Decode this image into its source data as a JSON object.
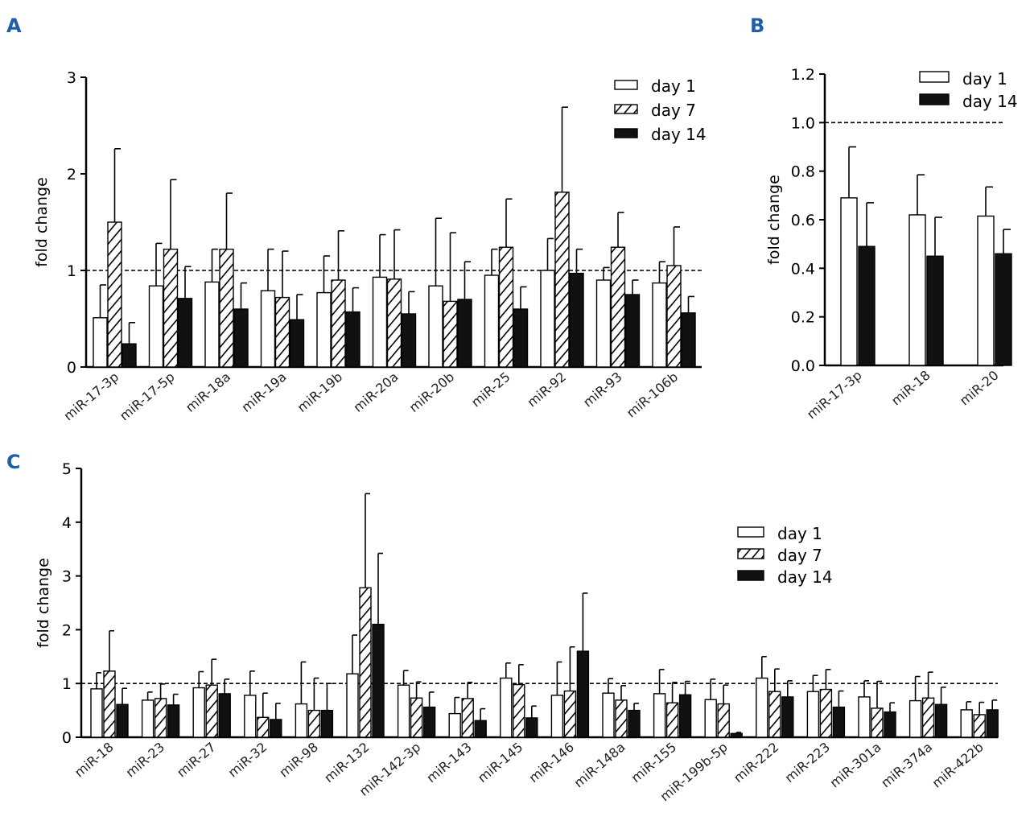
{
  "panel_letters": {
    "a": "A",
    "b": "B",
    "c": "C"
  },
  "colors": {
    "day1": "#ffffff",
    "day7_hatch": "#000000",
    "day14": "#111111",
    "axis": "#000000",
    "panel_letter": "#1f5fa8"
  },
  "chart_data": [
    {
      "id": "A",
      "type": "bar",
      "ylabel": "fold change",
      "xlabel": "",
      "ylim": [
        0,
        3
      ],
      "yticks": [
        "0",
        "1",
        "2",
        "3"
      ],
      "reference_line": 1,
      "legend": [
        "day 1",
        "day 7",
        "day 14"
      ],
      "categories": [
        "miR-17-3p",
        "miR-17-5p",
        "miR-18a",
        "miR-19a",
        "miR-19b",
        "miR-20a",
        "miR-20b",
        "miR-25",
        "miR-92",
        "miR-93",
        "miR-106b"
      ],
      "series": [
        {
          "name": "day 1",
          "style": "open",
          "values": [
            0.51,
            0.84,
            0.88,
            0.79,
            0.77,
            0.93,
            0.84,
            0.95,
            1.0,
            0.9,
            0.87
          ],
          "errors": [
            0.34,
            0.44,
            0.34,
            0.43,
            0.38,
            0.44,
            0.7,
            0.27,
            0.33,
            0.13,
            0.22
          ]
        },
        {
          "name": "day 7",
          "style": "hatched",
          "values": [
            1.5,
            1.22,
            1.22,
            0.72,
            0.9,
            0.91,
            0.68,
            1.24,
            1.81,
            1.24,
            1.05
          ],
          "errors": [
            0.76,
            0.72,
            0.58,
            0.48,
            0.51,
            0.51,
            0.71,
            0.5,
            0.88,
            0.36,
            0.4
          ]
        },
        {
          "name": "day 14",
          "style": "solid",
          "values": [
            0.24,
            0.71,
            0.6,
            0.49,
            0.57,
            0.55,
            0.7,
            0.6,
            0.97,
            0.75,
            0.56
          ],
          "errors": [
            0.22,
            0.33,
            0.27,
            0.26,
            0.25,
            0.23,
            0.39,
            0.23,
            0.25,
            0.15,
            0.17
          ]
        }
      ]
    },
    {
      "id": "B",
      "type": "bar",
      "ylabel": "fold change",
      "xlabel": "",
      "ylim": [
        0,
        1.2
      ],
      "yticks": [
        "0.0",
        "0.2",
        "0.4",
        "0.6",
        "0.8",
        "1.0",
        "1.2"
      ],
      "reference_line": 1.0,
      "legend": [
        "day 1",
        "day 14"
      ],
      "categories": [
        "miR-17-3p",
        "miR-18",
        "miR-20"
      ],
      "series": [
        {
          "name": "day 1",
          "style": "open",
          "values": [
            0.69,
            0.62,
            0.615
          ],
          "errors": [
            0.21,
            0.165,
            0.12
          ]
        },
        {
          "name": "day 14",
          "style": "solid",
          "values": [
            0.49,
            0.45,
            0.46
          ],
          "errors": [
            0.18,
            0.16,
            0.1
          ]
        }
      ]
    },
    {
      "id": "C",
      "type": "bar",
      "ylabel": "fold change",
      "xlabel": "",
      "ylim": [
        0,
        5
      ],
      "yticks": [
        "0",
        "1",
        "2",
        "3",
        "4",
        "5"
      ],
      "reference_line": 1,
      "legend": [
        "day 1",
        "day 7",
        "day 14"
      ],
      "categories": [
        "miR-18",
        "miR-23",
        "miR-27",
        "miR-32",
        "miR-98",
        "miR-132",
        "miR-142-3p",
        "miR-143",
        "miR-145",
        "miR-146",
        "miR-148a",
        "miR-155",
        "miR-199b-5p",
        "miR-222",
        "miR-223",
        "miR-301a",
        "miR-374a",
        "miR-422b"
      ],
      "series": [
        {
          "name": "day 1",
          "style": "open",
          "values": [
            0.9,
            0.69,
            0.92,
            0.78,
            0.62,
            1.18,
            0.97,
            0.44,
            1.1,
            0.78,
            0.82,
            0.81,
            0.7,
            1.1,
            0.85,
            0.75,
            0.68,
            0.51
          ],
          "errors": [
            0.3,
            0.15,
            0.3,
            0.45,
            0.78,
            0.72,
            0.27,
            0.3,
            0.28,
            0.62,
            0.27,
            0.45,
            0.38,
            0.4,
            0.3,
            0.3,
            0.45,
            0.15
          ]
        },
        {
          "name": "day 7",
          "style": "hatched",
          "values": [
            1.23,
            0.72,
            0.97,
            0.37,
            0.5,
            2.78,
            0.73,
            0.72,
            0.98,
            0.86,
            0.69,
            0.64,
            0.62,
            0.85,
            0.89,
            0.54,
            0.73,
            0.42
          ],
          "errors": [
            0.75,
            0.27,
            0.48,
            0.45,
            0.6,
            1.75,
            0.3,
            0.3,
            0.37,
            0.82,
            0.27,
            0.38,
            0.35,
            0.42,
            0.37,
            0.5,
            0.48,
            0.23
          ]
        },
        {
          "name": "day 14",
          "style": "solid",
          "values": [
            0.61,
            0.6,
            0.81,
            0.33,
            0.5,
            2.1,
            0.56,
            0.31,
            0.36,
            1.6,
            0.5,
            0.79,
            0.07,
            0.75,
            0.56,
            0.47,
            0.61,
            0.51
          ],
          "errors": [
            0.3,
            0.2,
            0.27,
            0.3,
            0.5,
            1.32,
            0.28,
            0.22,
            0.22,
            1.08,
            0.13,
            0.25,
            0.02,
            0.3,
            0.3,
            0.17,
            0.32,
            0.18
          ]
        }
      ]
    }
  ]
}
